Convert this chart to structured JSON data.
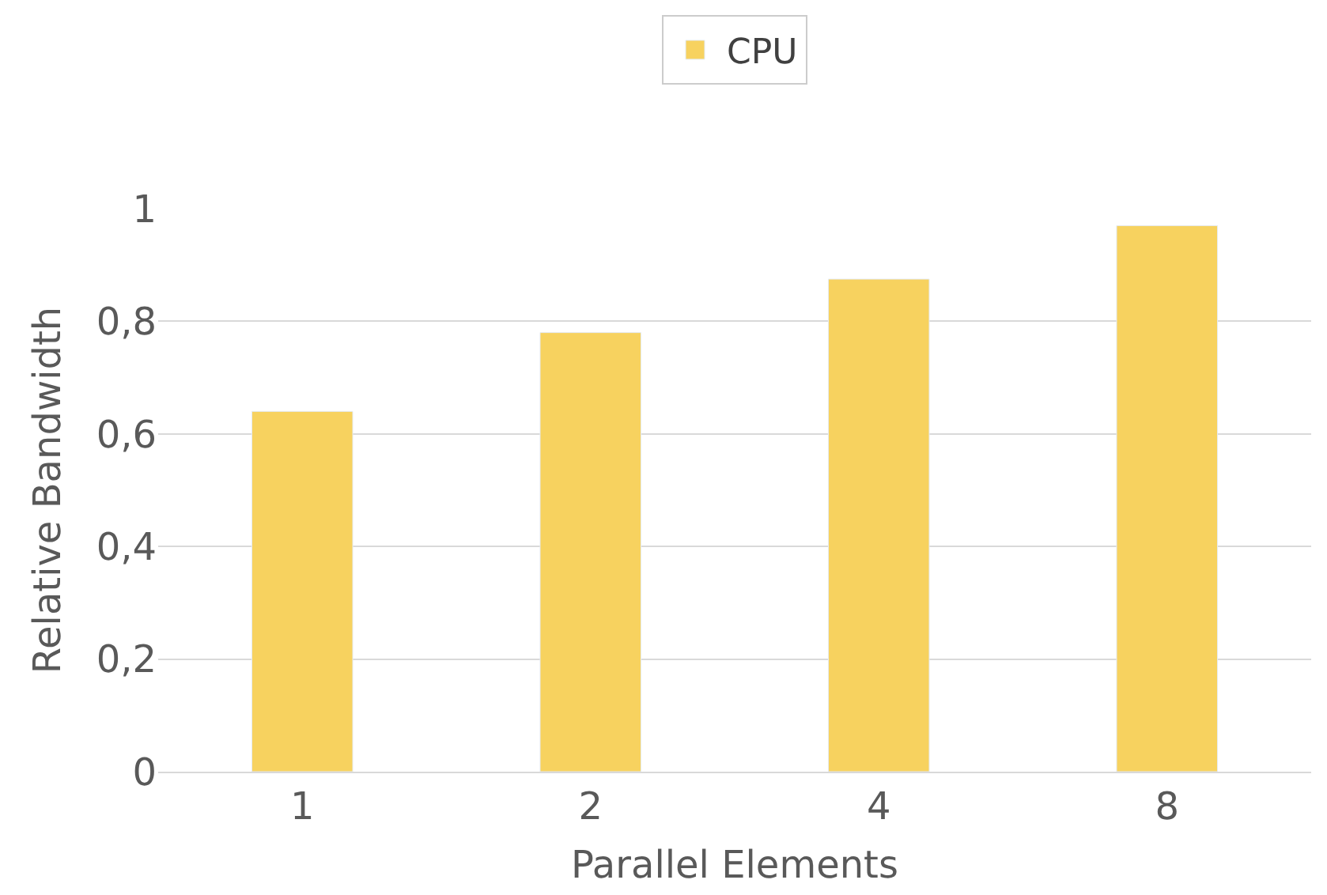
{
  "chart_data": {
    "type": "bar",
    "xlabel": "Parallel Elements",
    "ylabel": "Relative Bandwidth",
    "categories": [
      "1",
      "2",
      "4",
      "8"
    ],
    "series": [
      {
        "name": "CPU",
        "color": "#f7d25f",
        "values": [
          0.64,
          0.78,
          0.875,
          0.97
        ]
      }
    ],
    "ylim": [
      0,
      1
    ],
    "yticks": [
      0,
      {
        "value": 0.2,
        "label": "0,2"
      },
      {
        "value": 0.4,
        "label": "0,4"
      },
      {
        "value": 0.6,
        "label": "0,6"
      },
      {
        "value": 0.8,
        "label": "0,8"
      },
      1
    ],
    "grid": "y",
    "legend": "top"
  }
}
